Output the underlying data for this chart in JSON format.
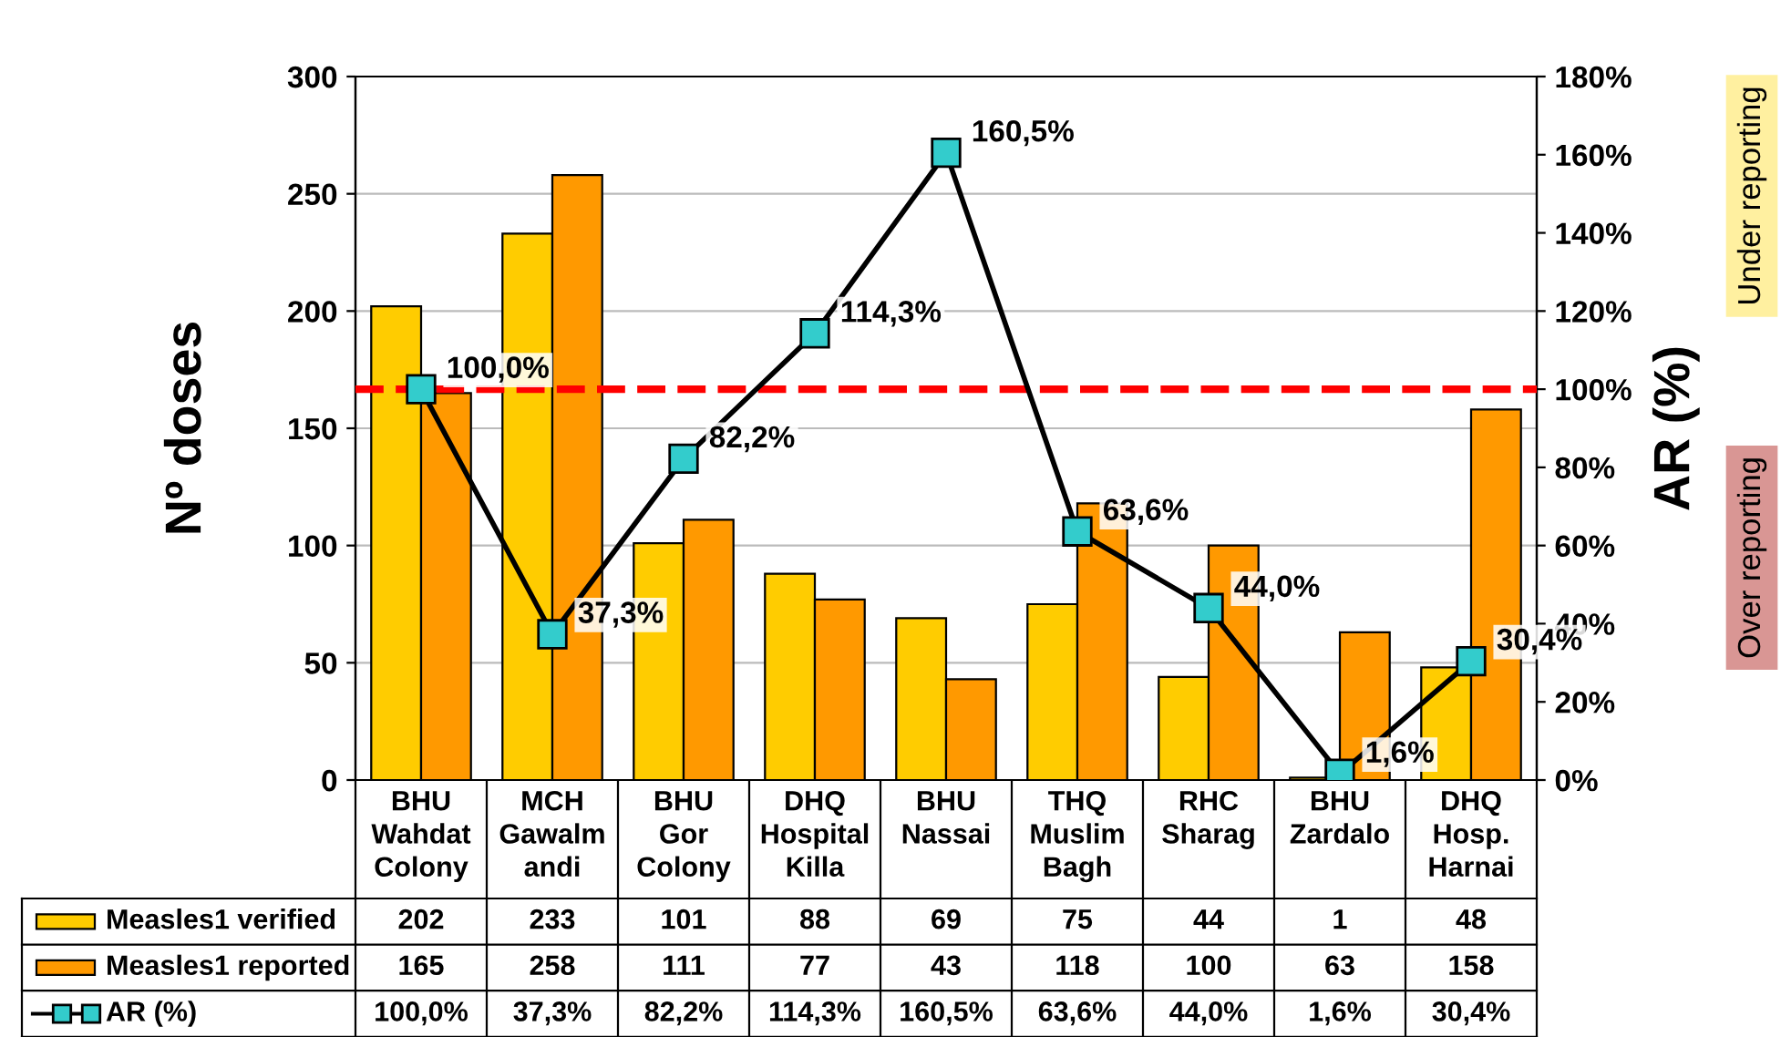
{
  "chart_data": {
    "type": "bar",
    "categories": [
      "BHU\nWahdat\nColony",
      "MCH\nGawalm\nandi",
      "BHU\nGor\nColony",
      "DHQ\nHospital\nKilla",
      "BHU\nNassai",
      "THQ\nMuslim\nBagh",
      "RHC\nSharag",
      "BHU\nZardalo",
      "DHQ\nHosp.\nHarnai"
    ],
    "series": [
      {
        "name": "Measles1 verified",
        "color": "#ffcc00",
        "values": [
          202,
          233,
          101,
          88,
          69,
          75,
          44,
          1,
          48
        ]
      },
      {
        "name": "Measles1 reported",
        "color": "#ff9900",
        "values": [
          165,
          258,
          111,
          77,
          43,
          118,
          100,
          63,
          158
        ]
      },
      {
        "name": "AR (%)",
        "type": "line",
        "axis": "y2",
        "color": "#000000",
        "marker": "square",
        "values": [
          100.0,
          37.3,
          82.2,
          114.3,
          160.5,
          63.6,
          44.0,
          1.6,
          30.4
        ],
        "value_labels": [
          "100,0%",
          "37,3%",
          "82,2%",
          "114,3%",
          "160,5%",
          "63,6%",
          "44,0%",
          "1,6%",
          "30,4%"
        ]
      }
    ],
    "ylabel": "Nº doses",
    "y2label": "AR (%)",
    "ylim": [
      0,
      300
    ],
    "yticks": [
      0,
      50,
      100,
      150,
      200,
      250,
      300
    ],
    "y2lim": [
      0,
      180
    ],
    "y2ticks": [
      {
        "value": 0,
        "label": "0%"
      },
      {
        "value": 20,
        "label": "20%"
      },
      {
        "value": 40,
        "label": "40%"
      },
      {
        "value": 60,
        "label": "60%"
      },
      {
        "value": 80,
        "label": "80%"
      },
      {
        "value": 100,
        "label": "100%"
      },
      {
        "value": 120,
        "label": "120%"
      },
      {
        "value": 140,
        "label": "140%"
      },
      {
        "value": 160,
        "label": "160%"
      },
      {
        "value": 180,
        "label": "180%"
      }
    ],
    "ref_lines": [
      {
        "axis": "y2",
        "value": 100,
        "color": "#ff0000",
        "line_style": "dashed"
      }
    ],
    "annotations": [
      "Under reporting",
      "Over reporting"
    ],
    "grid": "y",
    "legend": "bottom",
    "data_labels": true
  }
}
